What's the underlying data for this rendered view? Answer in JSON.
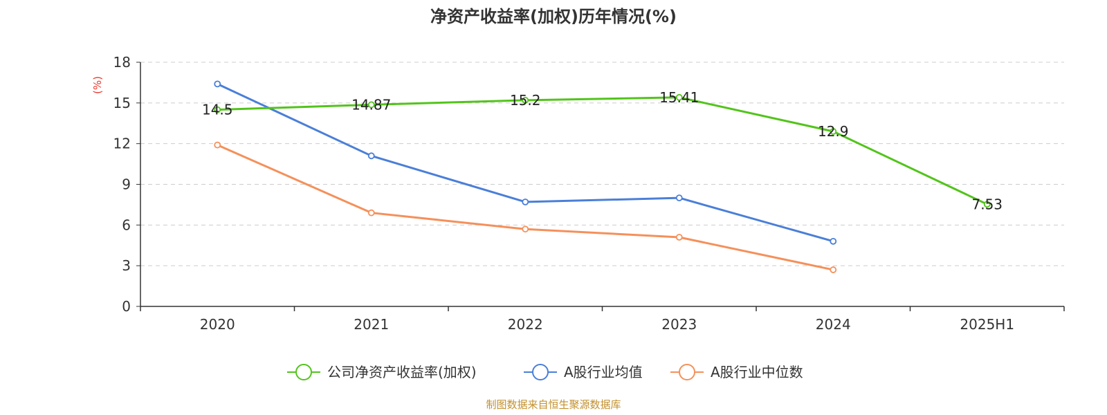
{
  "chart_data": {
    "type": "line",
    "title": "净资产收益率(加权)历年情况(%)",
    "ylabel": "(%)",
    "categories": [
      "2020",
      "2021",
      "2022",
      "2023",
      "2024",
      "2025H1"
    ],
    "ylim": [
      0,
      18
    ],
    "yticks": [
      "0",
      "3",
      "6",
      "9",
      "12",
      "15",
      "18"
    ],
    "grid": true,
    "legend_position": "bottom",
    "series": [
      {
        "name": "公司净资产收益率(加权)",
        "color": "#52c41a",
        "values": [
          14.5,
          14.87,
          15.2,
          15.41,
          12.9,
          7.53
        ],
        "labels": [
          "14.5",
          "14.87",
          "15.2",
          "15.41",
          "12.9",
          "7.53"
        ]
      },
      {
        "name": "A股行业均值",
        "color": "#4a7fd8",
        "values": [
          16.4,
          11.1,
          7.7,
          8.0,
          4.8,
          null
        ]
      },
      {
        "name": "A股行业中位数",
        "color": "#f5905a",
        "values": [
          11.9,
          6.9,
          5.7,
          5.1,
          2.7,
          null
        ]
      }
    ]
  },
  "source": "制图数据来自恒生聚源数据库"
}
